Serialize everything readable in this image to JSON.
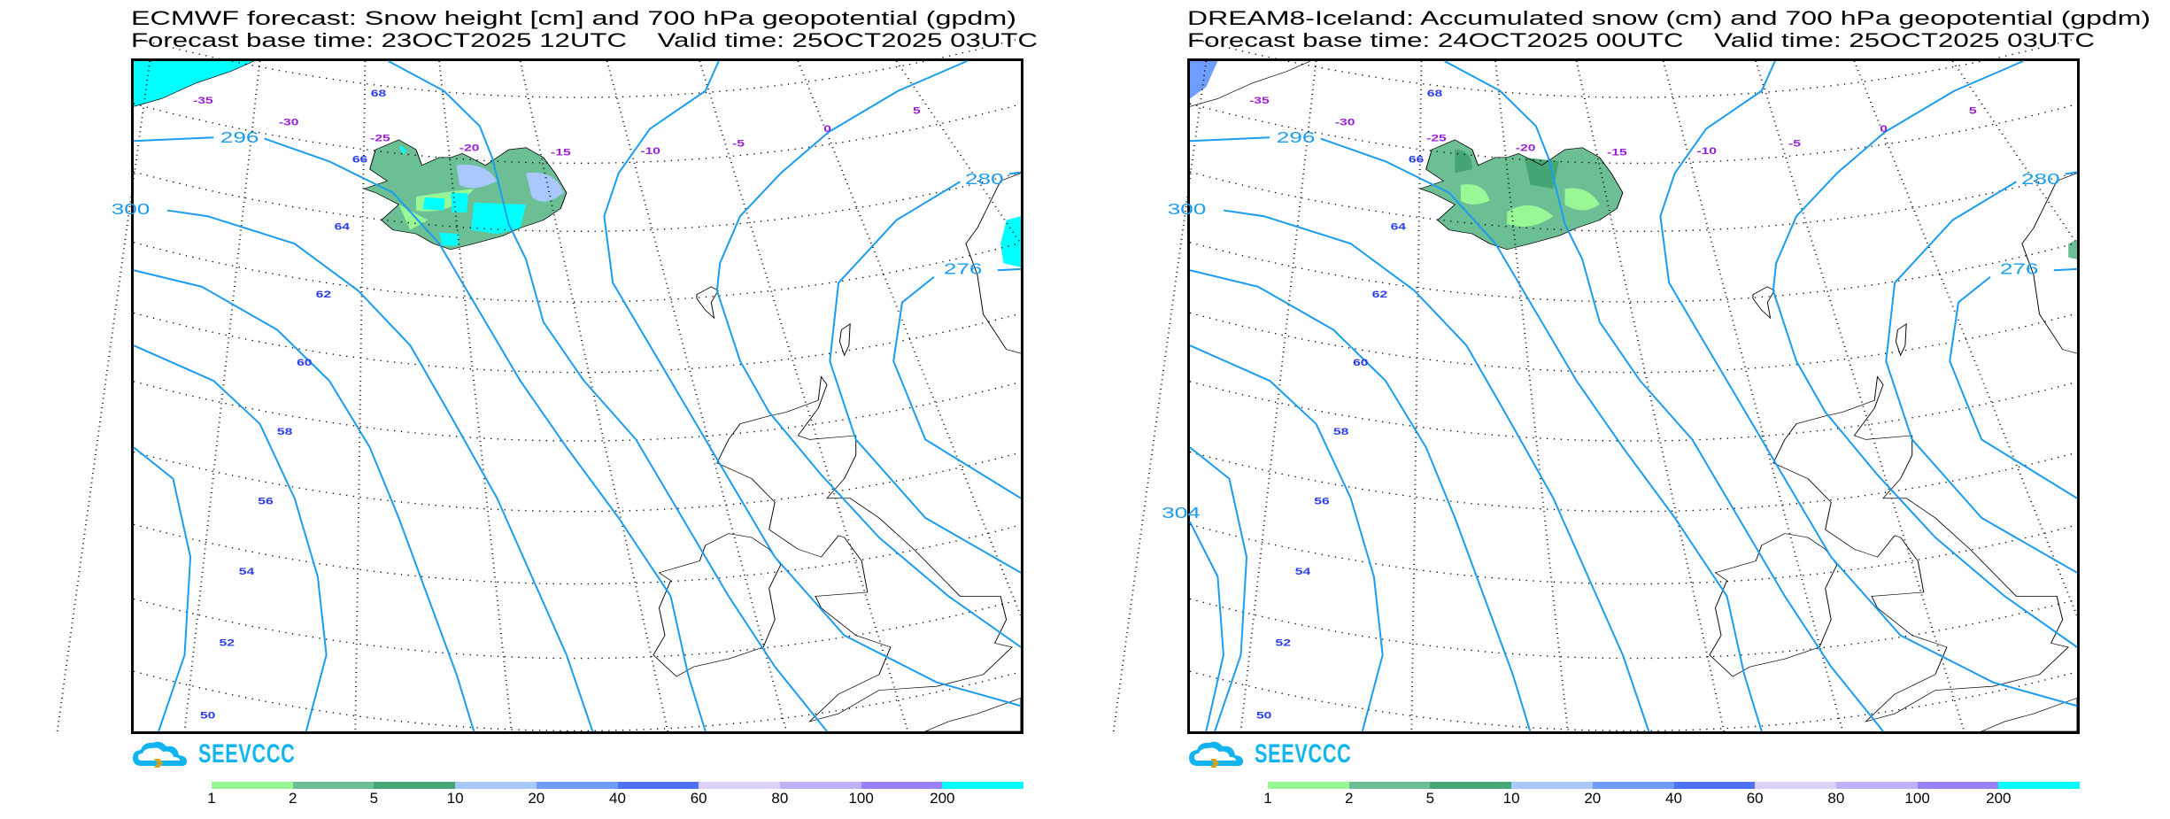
{
  "colors": {
    "contour": "#1a9cf0",
    "lat_label": "#2a3cf0",
    "lon_label": "#9a20d8",
    "logo": "#12b4f0"
  },
  "logo_text": "SEEVCCC",
  "colorbar": {
    "labels": [
      "1",
      "2",
      "5",
      "10",
      "20",
      "40",
      "60",
      "80",
      "100",
      "200"
    ],
    "colors": [
      "#99f896",
      "#6cbf94",
      "#45a575",
      "#a8c8ff",
      "#6e9cff",
      "#5070f8",
      "#dcd0f8",
      "#c0b0f8",
      "#9a80f8",
      "#00ffff"
    ]
  },
  "panels": [
    {
      "title_line1": "ECMWF forecast: Snow height [cm] and 700 hPa geopotential (gpdm)",
      "title_line2": "Forecast base time: 23OCT2025 12UTC    Valid time: 25OCT2025 03UTC",
      "contour_labels": [
        "296",
        "300",
        "280",
        "276"
      ],
      "lat_labels": [
        "68",
        "66",
        "64",
        "62",
        "60",
        "58",
        "56",
        "54",
        "52",
        "50"
      ],
      "lon_labels": [
        "-35",
        "-30",
        "-25",
        "-20",
        "-15",
        "-10",
        "-5",
        "0",
        "5"
      ]
    },
    {
      "title_line1": "DREAM8-Iceland: Accumulated snow (cm) and 700 hPa geopotential (gpdm)",
      "title_line2": "Forecast base time: 24OCT2025 00UTC    Valid time: 25OCT2025 03UTC",
      "contour_labels": [
        "296",
        "300",
        "280",
        "276",
        "304"
      ],
      "lat_labels": [
        "68",
        "66",
        "64",
        "62",
        "60",
        "58",
        "56",
        "54",
        "52",
        "50"
      ],
      "lon_labels": [
        "-35",
        "-30",
        "-25",
        "-20",
        "-15",
        "-10",
        "-5",
        "0",
        "5"
      ]
    }
  ]
}
